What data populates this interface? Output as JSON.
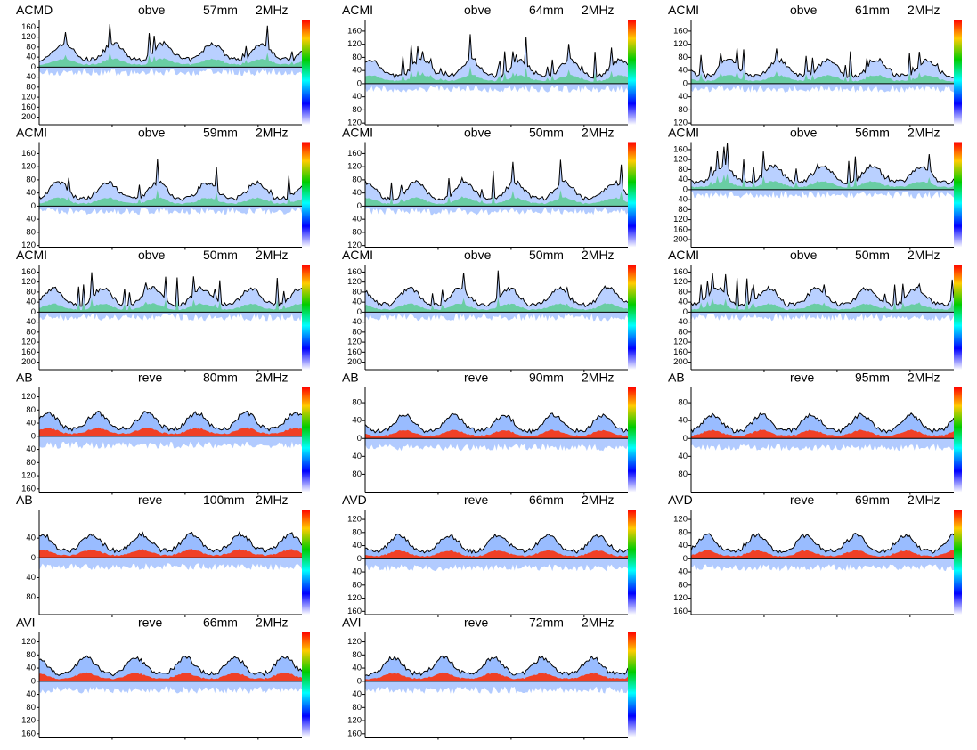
{
  "chart_data": [
    {
      "type": "spectrogram",
      "vessel": "ACMD",
      "direction": "obve",
      "depth": "57mm",
      "frequency": "2MHz",
      "ylim": [
        -230,
        190
      ],
      "yticks": [
        160,
        120,
        80,
        40,
        0,
        {
          "value": -40,
          "label": "40"
        },
        {
          "value": -80,
          "label": "80"
        },
        {
          "value": -120,
          "label": "120"
        },
        {
          "value": -160,
          "label": "160"
        },
        {
          "value": -200,
          "label": "200"
        }
      ]
    },
    {
      "type": "spectrogram",
      "vessel": "ACMI",
      "direction": "obve",
      "depth": "64mm",
      "frequency": "2MHz",
      "ylim": [
        -125,
        195
      ],
      "yticks": [
        160,
        120,
        80,
        40,
        0,
        {
          "value": -40,
          "label": "40"
        },
        {
          "value": -80,
          "label": "80"
        },
        {
          "value": -120,
          "label": "120"
        }
      ]
    },
    {
      "type": "spectrogram",
      "vessel": "ACMI",
      "direction": "obve",
      "depth": "61mm",
      "frequency": "2MHz",
      "ylim": [
        -125,
        195
      ],
      "yticks": [
        160,
        120,
        80,
        40,
        0,
        {
          "value": -40,
          "label": "40"
        },
        {
          "value": -80,
          "label": "80"
        },
        {
          "value": -120,
          "label": "120"
        }
      ]
    },
    {
      "type": "spectrogram",
      "vessel": "ACMI",
      "direction": "obve",
      "depth": "59mm",
      "frequency": "2MHz",
      "ylim": [
        -125,
        195
      ],
      "yticks": [
        160,
        120,
        80,
        40,
        0,
        {
          "value": -40,
          "label": "40"
        },
        {
          "value": -80,
          "label": "80"
        },
        {
          "value": -120,
          "label": "120"
        }
      ]
    },
    {
      "type": "spectrogram",
      "vessel": "ACMI",
      "direction": "obve",
      "depth": "50mm",
      "frequency": "2MHz",
      "ylim": [
        -125,
        195
      ],
      "yticks": [
        160,
        120,
        80,
        40,
        0,
        {
          "value": -40,
          "label": "40"
        },
        {
          "value": -80,
          "label": "80"
        },
        {
          "value": -120,
          "label": "120"
        }
      ]
    },
    {
      "type": "spectrogram",
      "vessel": "ACMI",
      "direction": "obve",
      "depth": "56mm",
      "frequency": "2MHz",
      "ylim": [
        -230,
        190
      ],
      "yticks": [
        160,
        120,
        80,
        40,
        0,
        {
          "value": -40,
          "label": "40"
        },
        {
          "value": -80,
          "label": "80"
        },
        {
          "value": -120,
          "label": "120"
        },
        {
          "value": -160,
          "label": "160"
        },
        {
          "value": -200,
          "label": "200"
        }
      ]
    },
    {
      "type": "spectrogram",
      "vessel": "ACMI",
      "direction": "obve",
      "depth": "50mm",
      "frequency": "2MHz",
      "ylim": [
        -230,
        190
      ],
      "yticks": [
        160,
        120,
        80,
        40,
        0,
        {
          "value": -40,
          "label": "40"
        },
        {
          "value": -80,
          "label": "80"
        },
        {
          "value": -120,
          "label": "120"
        },
        {
          "value": -160,
          "label": "160"
        },
        {
          "value": -200,
          "label": "200"
        }
      ]
    },
    {
      "type": "spectrogram",
      "vessel": "ACMI",
      "direction": "obve",
      "depth": "50mm",
      "frequency": "2MHz",
      "ylim": [
        -230,
        190
      ],
      "yticks": [
        160,
        120,
        80,
        40,
        0,
        {
          "value": -40,
          "label": "40"
        },
        {
          "value": -80,
          "label": "80"
        },
        {
          "value": -120,
          "label": "120"
        },
        {
          "value": -160,
          "label": "160"
        },
        {
          "value": -200,
          "label": "200"
        }
      ]
    },
    {
      "type": "spectrogram",
      "vessel": "ACMI",
      "direction": "obve",
      "depth": "50mm",
      "frequency": "2MHz",
      "ylim": [
        -230,
        190
      ],
      "yticks": [
        160,
        120,
        80,
        40,
        0,
        {
          "value": -40,
          "label": "40"
        },
        {
          "value": -80,
          "label": "80"
        },
        {
          "value": -120,
          "label": "120"
        },
        {
          "value": -160,
          "label": "160"
        },
        {
          "value": -200,
          "label": "200"
        }
      ]
    },
    {
      "type": "spectrogram",
      "vessel": "AB",
      "direction": "reve",
      "depth": "80mm",
      "frequency": "2MHz",
      "ylim": [
        -170,
        150
      ],
      "yticks": [
        120,
        80,
        40,
        0,
        {
          "value": -40,
          "label": "40"
        },
        {
          "value": -80,
          "label": "80"
        },
        {
          "value": -120,
          "label": "120"
        },
        {
          "value": -160,
          "label": "160"
        }
      ]
    },
    {
      "type": "spectrogram",
      "vessel": "AB",
      "direction": "reve",
      "depth": "90mm",
      "frequency": "2MHz",
      "ylim": [
        -120,
        115
      ],
      "yticks": [
        80,
        40,
        0,
        {
          "value": -40,
          "label": "40"
        },
        {
          "value": -80,
          "label": "80"
        }
      ]
    },
    {
      "type": "spectrogram",
      "vessel": "AB",
      "direction": "reve",
      "depth": "95mm",
      "frequency": "2MHz",
      "ylim": [
        -120,
        115
      ],
      "yticks": [
        80,
        40,
        0,
        {
          "value": -40,
          "label": "40"
        },
        {
          "value": -80,
          "label": "80"
        }
      ]
    },
    {
      "type": "spectrogram",
      "vessel": "AB",
      "direction": "reve",
      "depth": "100mm",
      "frequency": "2MHz",
      "ylim": [
        -115,
        98
      ],
      "yticks": [
        40,
        0,
        {
          "value": -40,
          "label": "40"
        },
        {
          "value": -80,
          "label": "80"
        }
      ]
    },
    {
      "type": "spectrogram",
      "vessel": "AVD",
      "direction": "reve",
      "depth": "66mm",
      "frequency": "2MHz",
      "ylim": [
        -170,
        150
      ],
      "yticks": [
        120,
        80,
        40,
        0,
        {
          "value": -40,
          "label": "40"
        },
        {
          "value": -80,
          "label": "80"
        },
        {
          "value": -120,
          "label": "120"
        },
        {
          "value": -160,
          "label": "160"
        }
      ]
    },
    {
      "type": "spectrogram",
      "vessel": "AVD",
      "direction": "reve",
      "depth": "69mm",
      "frequency": "2MHz",
      "ylim": [
        -170,
        150
      ],
      "yticks": [
        120,
        80,
        40,
        0,
        {
          "value": -40,
          "label": "40"
        },
        {
          "value": -80,
          "label": "80"
        },
        {
          "value": -120,
          "label": "120"
        },
        {
          "value": -160,
          "label": "160"
        }
      ]
    },
    {
      "type": "spectrogram",
      "vessel": "AVI",
      "direction": "reve",
      "depth": "66mm",
      "frequency": "2MHz",
      "ylim": [
        -170,
        150
      ],
      "yticks": [
        120,
        80,
        40,
        0,
        {
          "value": -40,
          "label": "40"
        },
        {
          "value": -80,
          "label": "80"
        },
        {
          "value": -120,
          "label": "120"
        },
        {
          "value": -160,
          "label": "160"
        }
      ]
    },
    {
      "type": "spectrogram",
      "vessel": "AVI",
      "direction": "reve",
      "depth": "72mm",
      "frequency": "2MHz",
      "ylim": [
        -170,
        150
      ],
      "yticks": [
        120,
        80,
        40,
        0,
        {
          "value": -40,
          "label": "40"
        },
        {
          "value": -80,
          "label": "80"
        },
        {
          "value": -120,
          "label": "120"
        },
        {
          "value": -160,
          "label": "160"
        }
      ]
    }
  ]
}
